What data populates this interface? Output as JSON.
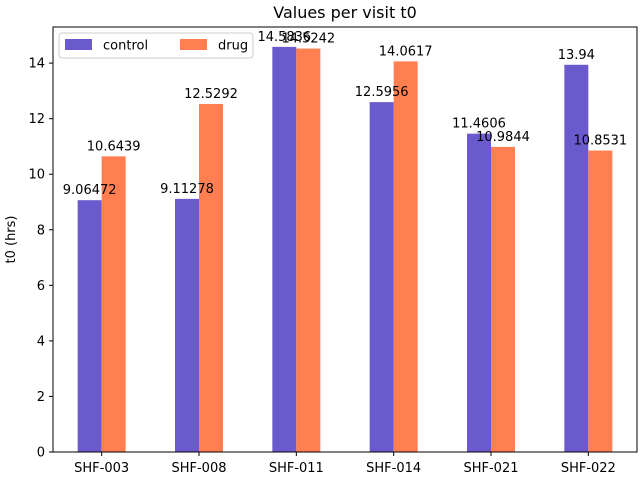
{
  "chart_data": {
    "type": "bar",
    "title": "Values per visit t0",
    "xlabel": "",
    "ylabel": "t0 (hrs)",
    "categories": [
      "SHF-003",
      "SHF-008",
      "SHF-011",
      "SHF-014",
      "SHF-021",
      "SHF-022"
    ],
    "series": [
      {
        "name": "control",
        "color": "#6a5acd",
        "values": [
          9.06472,
          9.11278,
          14.5836,
          12.5956,
          11.4606,
          13.94
        ],
        "labels": [
          "9.06472",
          "9.11278",
          "14.5836",
          "12.5956",
          "11.4606",
          "13.94"
        ]
      },
      {
        "name": "drug",
        "color": "#ff7f50",
        "values": [
          10.6439,
          12.5292,
          14.5242,
          14.0617,
          10.9844,
          10.8531
        ],
        "labels": [
          "10.6439",
          "12.5292",
          "14.5242",
          "14.0617",
          "10.9844",
          "10.8531"
        ]
      }
    ],
    "ylim": [
      0,
      15.3
    ],
    "yticks": [
      0,
      2,
      4,
      6,
      8,
      10,
      12,
      14
    ],
    "ytick_labels": [
      "0",
      "2",
      "4",
      "6",
      "8",
      "10",
      "12",
      "14"
    ],
    "grid": false,
    "legend": "top-left"
  }
}
